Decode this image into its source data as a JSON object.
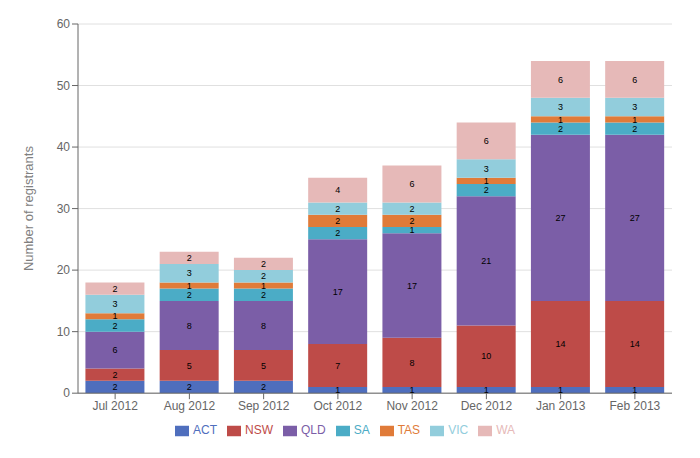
{
  "chart_data": {
    "type": "bar",
    "stacked": true,
    "categories": [
      "Jul 2012",
      "Aug 2012",
      "Sep 2012",
      "Oct 2012",
      "Nov 2012",
      "Dec 2012",
      "Jan 2013",
      "Feb 2013"
    ],
    "series": [
      {
        "name": "ACT",
        "color": "#4F6EBD",
        "values": [
          2,
          2,
          2,
          1,
          1,
          1,
          1,
          1
        ]
      },
      {
        "name": "NSW",
        "color": "#BE4B48",
        "values": [
          2,
          5,
          5,
          7,
          8,
          10,
          14,
          14
        ]
      },
      {
        "name": "QLD",
        "color": "#7B5EA7",
        "values": [
          6,
          8,
          8,
          17,
          17,
          21,
          27,
          27
        ]
      },
      {
        "name": "SA",
        "color": "#4BACC6",
        "values": [
          2,
          2,
          2,
          2,
          1,
          2,
          2,
          2
        ]
      },
      {
        "name": "TAS",
        "color": "#E07B39",
        "values": [
          1,
          1,
          1,
          2,
          2,
          1,
          1,
          1
        ]
      },
      {
        "name": "VIC",
        "color": "#92CDDC",
        "values": [
          3,
          3,
          2,
          2,
          2,
          3,
          3,
          3
        ]
      },
      {
        "name": "WA",
        "color": "#E6B9B8",
        "values": [
          2,
          2,
          2,
          4,
          6,
          6,
          6,
          6
        ]
      }
    ],
    "ylabel": "Number of registrants",
    "ylim": [
      0,
      60
    ],
    "yticks": [
      0,
      10,
      20,
      30,
      40,
      50,
      60
    ],
    "grid": true,
    "legend": "bottom",
    "data_labels": true
  }
}
